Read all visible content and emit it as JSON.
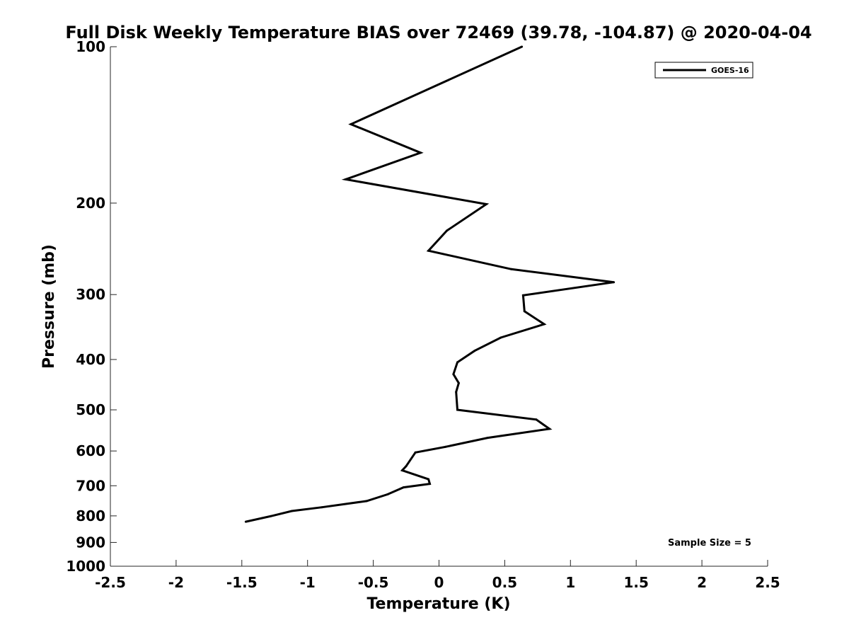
{
  "chart_data": {
    "type": "line",
    "title": "Full Disk Weekly Temperature BIAS over 72469 (39.78, -104.87) @ 2020-04-04",
    "xlabel": "Temperature (K)",
    "ylabel": "Pressure (mb)",
    "xlim": [
      -2.5,
      2.5
    ],
    "ylim": [
      100,
      1000
    ],
    "y_scale": "log",
    "y_reversed": true,
    "x_ticks": [
      -2.5,
      -2,
      -1.5,
      -1,
      -0.5,
      0,
      0.5,
      1,
      1.5,
      2,
      2.5
    ],
    "x_tick_labels": [
      "-2.5",
      "-2",
      "-1.5",
      "-1",
      "-0.5",
      "0",
      "0.5",
      "1",
      "1.5",
      "2",
      "2.5"
    ],
    "y_ticks": [
      100,
      200,
      300,
      400,
      500,
      600,
      700,
      800,
      900,
      1000
    ],
    "y_tick_labels": [
      "100",
      "200",
      "300",
      "400",
      "500",
      "600",
      "700",
      "800",
      "900",
      "1000"
    ],
    "grid": false,
    "legend_position": "top-right",
    "series": [
      {
        "name": "GOES-16",
        "color": "#000000",
        "points": [
          {
            "t": 0.63,
            "p": 100
          },
          {
            "t": -0.67,
            "p": 141
          },
          {
            "t": -0.14,
            "p": 160
          },
          {
            "t": -0.71,
            "p": 180
          },
          {
            "t": 0.36,
            "p": 201
          },
          {
            "t": 0.06,
            "p": 226
          },
          {
            "t": -0.08,
            "p": 247
          },
          {
            "t": 0.55,
            "p": 268
          },
          {
            "t": 1.33,
            "p": 284
          },
          {
            "t": 0.64,
            "p": 301
          },
          {
            "t": 0.65,
            "p": 323
          },
          {
            "t": 0.8,
            "p": 342
          },
          {
            "t": 0.47,
            "p": 363
          },
          {
            "t": 0.27,
            "p": 385
          },
          {
            "t": 0.14,
            "p": 405
          },
          {
            "t": 0.11,
            "p": 427
          },
          {
            "t": 0.15,
            "p": 444
          },
          {
            "t": 0.13,
            "p": 462
          },
          {
            "t": 0.14,
            "p": 500
          },
          {
            "t": 0.74,
            "p": 522
          },
          {
            "t": 0.84,
            "p": 544
          },
          {
            "t": 0.37,
            "p": 566
          },
          {
            "t": 0.05,
            "p": 589
          },
          {
            "t": -0.18,
            "p": 604
          },
          {
            "t": -0.25,
            "p": 642
          },
          {
            "t": -0.28,
            "p": 654
          },
          {
            "t": -0.08,
            "p": 680
          },
          {
            "t": -0.07,
            "p": 694
          },
          {
            "t": -0.27,
            "p": 705
          },
          {
            "t": -0.39,
            "p": 727
          },
          {
            "t": -0.55,
            "p": 749
          },
          {
            "t": -0.89,
            "p": 770
          },
          {
            "t": -1.12,
            "p": 783
          },
          {
            "t": -1.28,
            "p": 801
          },
          {
            "t": -1.47,
            "p": 821
          }
        ]
      }
    ],
    "annotation": "Sample Size = 5"
  }
}
